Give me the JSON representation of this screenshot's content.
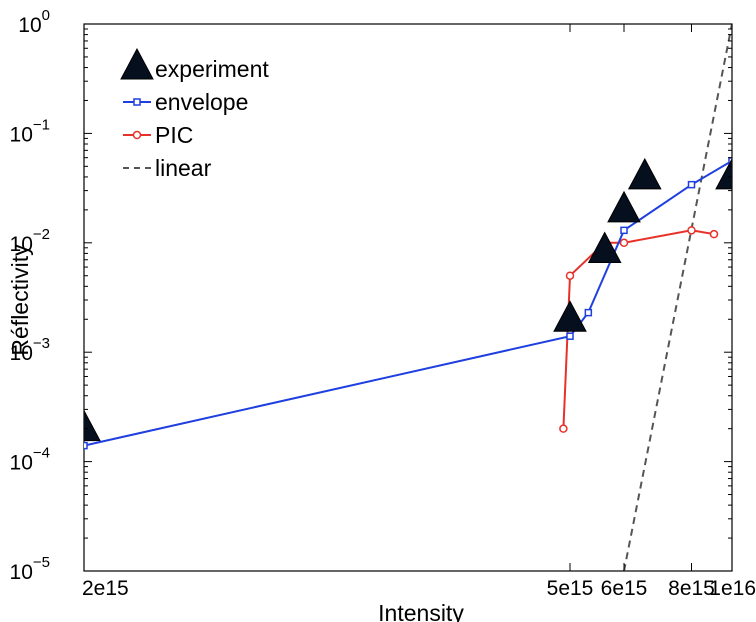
{
  "chart_data": {
    "type": "line",
    "xlabel": "Intensity",
    "ylabel": "Réflectivity",
    "xscale": "reciprocal",
    "yscale": "log",
    "xlim": [
      2000000000000000.0,
      1e+16
    ],
    "ylim": [
      1e-05,
      1
    ],
    "x_ticks": [
      {
        "value": 2000000000000000.0,
        "label": "2e15"
      },
      {
        "value": 5000000000000000.0,
        "label": "5e15"
      },
      {
        "value": 6000000000000000.0,
        "label": "6e15"
      },
      {
        "value": 8000000000000000.0,
        "label": "8e15"
      },
      {
        "value": 1e+16,
        "label": "1e16"
      }
    ],
    "y_ticks": [
      {
        "value": 1e-05,
        "base": "10",
        "exp": "−5"
      },
      {
        "value": 0.0001,
        "base": "10",
        "exp": "−4"
      },
      {
        "value": 0.001,
        "base": "10",
        "exp": "−3"
      },
      {
        "value": 0.01,
        "base": "10",
        "exp": "−2"
      },
      {
        "value": 0.1,
        "base": "10",
        "exp": "−1"
      },
      {
        "value": 1,
        "base": "10",
        "exp": "0"
      }
    ],
    "grid": false,
    "legend_position": "top-left",
    "series": [
      {
        "name": "experiment",
        "marker": "triangle",
        "line": "none",
        "color": "#000000",
        "x": [
          2000000000000000.0,
          5000000000000000.0,
          5600000000000000.0,
          6000000000000000.0,
          6500000000000000.0,
          1e+16
        ],
        "y": [
          0.0002,
          0.002,
          0.0085,
          0.02,
          0.04,
          0.04
        ]
      },
      {
        "name": "envelope",
        "marker": "square",
        "line": "solid",
        "color": "#1f3fe0",
        "x": [
          2000000000000000.0,
          5000000000000000.0,
          5300000000000000.0,
          6000000000000000.0,
          8000000000000000.0,
          1e+16
        ],
        "y": [
          0.00014,
          0.0014,
          0.0023,
          0.013,
          0.034,
          0.056
        ]
      },
      {
        "name": "PIC",
        "marker": "circle",
        "line": "solid",
        "color": "#e8312a",
        "x": [
          4900000000000000.0,
          5000000000000000.0,
          5600000000000000.0,
          6000000000000000.0,
          8000000000000000.0,
          9000000000000000.0
        ],
        "y": [
          0.0002,
          0.005,
          0.01,
          0.01,
          0.013,
          0.012
        ]
      },
      {
        "name": "linear",
        "marker": "none",
        "line": "dashed",
        "color": "#555555",
        "x": [
          6000000000000000.0,
          1e+16
        ],
        "y": [
          1e-05,
          1
        ]
      }
    ]
  }
}
